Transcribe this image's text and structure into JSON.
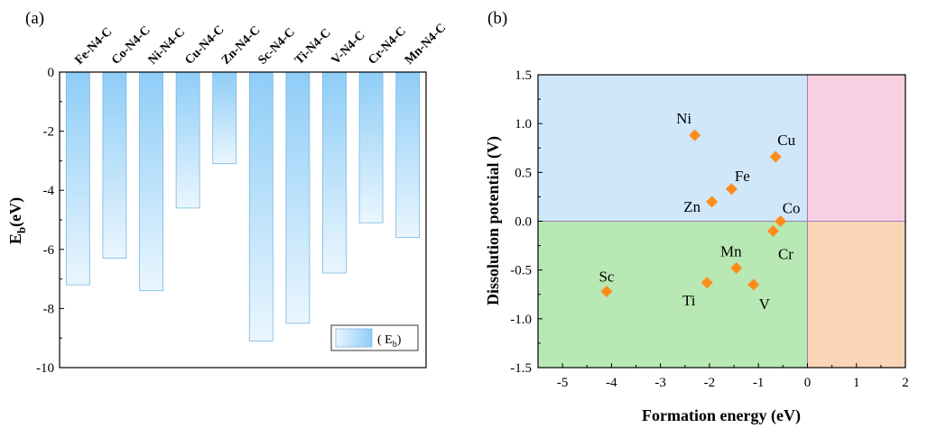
{
  "chart_data": [
    {
      "panel": "(a)",
      "type": "bar",
      "categories": [
        "Fe-N4-C",
        "Co-N4-C",
        "Ni-N4-C",
        "Cu-N4-C",
        "Zn-N4-C",
        "Sc-N4-C",
        "Ti-N4-C",
        "V-N4-C",
        "Cr-N4-C",
        "Mn-N4-C"
      ],
      "values": [
        -7.2,
        -6.3,
        -7.4,
        -4.6,
        -3.1,
        -9.1,
        -8.5,
        -6.8,
        -5.1,
        -5.6
      ],
      "ylabel_main": "E",
      "ylabel_sub": "b",
      "ylabel_tail": "(eV)",
      "ylim": [
        -10,
        0
      ],
      "yticks": [
        0,
        -2,
        -4,
        -6,
        -8,
        -10
      ],
      "ytick_labels": [
        "0",
        "-2",
        "-4",
        "-6",
        "-8",
        "-10"
      ],
      "legend": {
        "position": "bottom-right",
        "text_open": "( E",
        "text_sub": "b",
        "text_close": ")"
      },
      "colors": {
        "bar_top": "#8ecdf7",
        "bar_bottom": "#eaf6fe",
        "bar_edge": "#7ab6e0"
      }
    },
    {
      "panel": "(b)",
      "type": "scatter",
      "xlabel": "Formation energy (eV)",
      "ylabel": "Dissolution potential (V)",
      "xlim": [
        -5.5,
        2
      ],
      "ylim": [
        -1.5,
        1.5
      ],
      "xticks": [
        -5,
        -4,
        -3,
        -2,
        -1,
        0,
        1,
        2
      ],
      "xtick_labels": [
        "-5",
        "-4",
        "-3",
        "-2",
        "-1",
        "0",
        "1",
        "2"
      ],
      "yticks": [
        1.5,
        1.0,
        0.5,
        0.0,
        -0.5,
        -1.0,
        -1.5
      ],
      "ytick_labels": [
        "1.5",
        "1.0",
        "0.5",
        "0.0",
        "-0.5",
        "-1.0",
        "-1.5"
      ],
      "points": [
        {
          "label": "Ni",
          "x": -2.3,
          "y": 0.88
        },
        {
          "label": "Cu",
          "x": -0.65,
          "y": 0.66
        },
        {
          "label": "Fe",
          "x": -1.55,
          "y": 0.33
        },
        {
          "label": "Zn",
          "x": -1.95,
          "y": 0.2
        },
        {
          "label": "Co",
          "x": -0.55,
          "y": 0.0
        },
        {
          "label": "Cr",
          "x": -0.7,
          "y": -0.1
        },
        {
          "label": "Mn",
          "x": -1.45,
          "y": -0.48
        },
        {
          "label": "Sc",
          "x": -4.1,
          "y": -0.72
        },
        {
          "label": "Ti",
          "x": -2.05,
          "y": -0.63
        },
        {
          "label": "V",
          "x": -1.1,
          "y": -0.65
        }
      ],
      "quadrant_colors": {
        "top_left": "#d0e7fa",
        "top_right": "#f9cfe2",
        "bottom_left": "#b8e8b3",
        "bottom_right": "#f9d4b5"
      },
      "marker_color": "#ff8c1a"
    }
  ]
}
